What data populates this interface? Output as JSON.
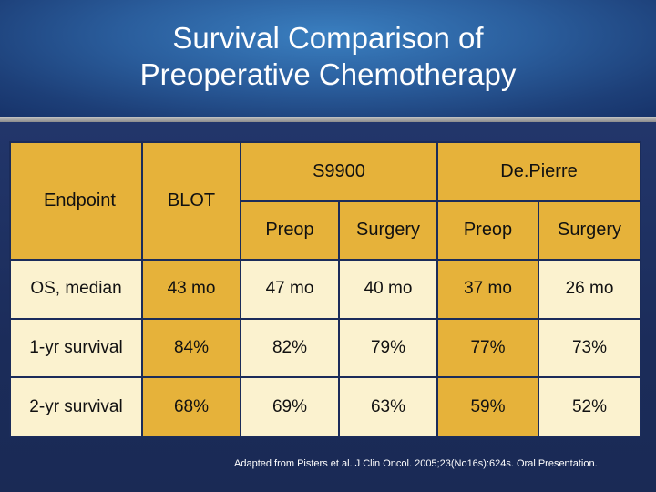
{
  "slide": {
    "title_line1": "Survival Comparison of",
    "title_line2": "Preoperative Chemotherapy"
  },
  "table": {
    "endpoint_header": "Endpoint",
    "blot_header": "BLOT",
    "group_s9900": "S9900",
    "group_depierre": "De.Pierre",
    "sub_preop_1": "Preop",
    "sub_surgery_1": "Surgery",
    "sub_preop_2": "Preop",
    "sub_surgery_2": "Surgery",
    "rows": [
      {
        "endpoint": "OS, median",
        "blot": "43 mo",
        "s_preop": "47 mo",
        "s_surgery": "40 mo",
        "d_preop": "37 mo",
        "d_surgery": "26 mo"
      },
      {
        "endpoint": "1-yr survival",
        "blot": "84%",
        "s_preop": "82%",
        "s_surgery": "79%",
        "d_preop": "77%",
        "d_surgery": "73%"
      },
      {
        "endpoint": "2-yr survival",
        "blot": "68%",
        "s_preop": "69%",
        "s_surgery": "63%",
        "d_preop": "59%",
        "d_surgery": "52%"
      }
    ]
  },
  "footnote": "Adapted from Pisters et al. J Clin Oncol. 2005;23(No16s):624s.  Oral Presentation."
}
